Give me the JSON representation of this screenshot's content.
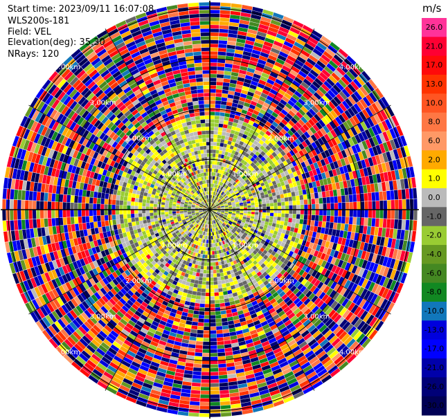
{
  "info": {
    "start_time": "Start time: 2023/09/11 16:07:08",
    "instrument": "WLS200s-181",
    "field": "Field: VEL",
    "elevation": "Elevation(deg): 35.30",
    "nrays": "NRays: 120"
  },
  "colorbar": {
    "unit": "m/s",
    "ticks": [
      "26.0",
      "21.0",
      "17.0",
      "13.0",
      "10.0",
      "8.0",
      "6.0",
      "2.0",
      "1.0",
      "0.0",
      "-1.0",
      "-2.0",
      "-4.0",
      "-6.0",
      "-8.0",
      "-10.0",
      "-13.0",
      "-17.0",
      "-21.0",
      "-26.0",
      "-30.0"
    ],
    "colors": [
      "#ff3399",
      "#ff0033",
      "#ff0a0a",
      "#ff3300",
      "#ff5522",
      "#ff7744",
      "#ff9966",
      "#ffaa00",
      "#ffff00",
      "#bbbbbb",
      "#666666",
      "#99cc33",
      "#669922",
      "#448822",
      "#118822",
      "#1177bb",
      "#0000dd",
      "#0000ff",
      "#0000aa",
      "#000077",
      "#000055"
    ]
  },
  "chart_data": {
    "type": "heatmap",
    "projection": "polar-ppi",
    "field": "VEL",
    "units": "m/s",
    "nrays": 120,
    "range_rings_km": [
      1.0,
      2.0,
      3.0,
      4.0
    ],
    "ring_labels": [
      "1.00km",
      "2.00km",
      "3.00km",
      "4.00km"
    ],
    "max_range_km": 4.15,
    "rays_every_deg": 30,
    "pattern_description_zones": [
      {
        "range_km": [
          0.0,
          0.55
        ],
        "dominant": "gray/yellow-green",
        "values_m_s": [
          -1.0,
          0.0,
          1.5,
          -2.0
        ]
      },
      {
        "range_km": [
          0.55,
          1.35
        ],
        "dominant": "gray with yellow-green ring",
        "values_m_s": [
          0.0,
          -1.0,
          1.5,
          -2.0
        ]
      },
      {
        "range_km": [
          1.35,
          1.8
        ],
        "dominant": "yellow/green mixed",
        "values_m_s": [
          1.5,
          -2.0,
          -1.0,
          0.0
        ]
      },
      {
        "range_km": [
          1.8,
          4.15
        ],
        "dominant": "noise (all colors)",
        "values_m_s": [
          -30,
          26
        ]
      }
    ]
  }
}
